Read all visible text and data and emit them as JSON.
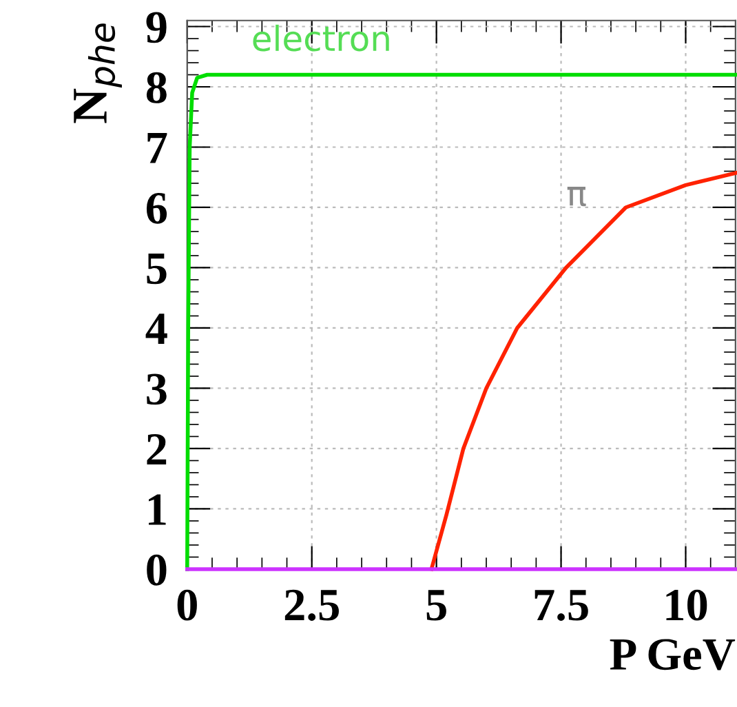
{
  "chart_data": {
    "type": "line",
    "xlabel": "P GeV",
    "ylabel": "N$_{phe}$",
    "xlim": [
      0,
      11.0
    ],
    "ylim": [
      0,
      9.1
    ],
    "xticks": [
      0,
      2.5,
      5,
      7.5,
      10
    ],
    "yticks": [
      0,
      1,
      2,
      3,
      4,
      5,
      6,
      7,
      8,
      9
    ],
    "grid": true,
    "line_style": "solid",
    "marker": "none",
    "series": [
      {
        "color": "#00dd00",
        "x": [
          0,
          0.02,
          0.05,
          0.1,
          0.2,
          0.4,
          11.0
        ],
        "values": [
          0,
          4,
          7,
          7.9,
          8.15,
          8.2,
          8.2
        ]
      },
      {
        "color": "#ff2200",
        "x": [
          4.9,
          5.2,
          5.54,
          6.0,
          6.62,
          7.6,
          8.8,
          10,
          11.0
        ],
        "values": [
          0,
          0.9,
          2,
          3.0,
          4,
          5,
          6,
          6.37,
          6.57
        ]
      },
      {
        "color": "#cc33ff",
        "x": [
          0,
          11.0
        ],
        "values": [
          0,
          0
        ]
      }
    ],
    "annotations": [
      "electron",
      "π"
    ]
  }
}
